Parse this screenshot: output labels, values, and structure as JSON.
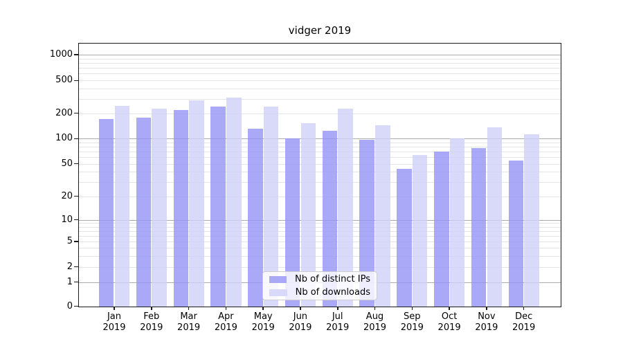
{
  "title": "vidger 2019",
  "chart_data": {
    "type": "bar",
    "title": "vidger 2019",
    "categories": [
      "Jan 2019",
      "Feb 2019",
      "Mar 2019",
      "Apr 2019",
      "May 2019",
      "Jun 2019",
      "Jul 2019",
      "Aug 2019",
      "Sep 2019",
      "Oct 2019",
      "Nov 2019",
      "Dec 2019"
    ],
    "series": [
      {
        "name": "Nb of distinct IPs",
        "color": "#a9a9f6",
        "fill": "rgba(147,147,246,0.8)",
        "values": [
          170,
          178,
          219,
          242,
          131,
          100,
          123,
          97,
          43,
          70,
          77,
          55
        ]
      },
      {
        "name": "Nb of downloads",
        "color": "#d9d9f9",
        "fill": "rgba(208,208,249,0.8)",
        "values": [
          243,
          227,
          285,
          310,
          239,
          151,
          229,
          145,
          63,
          101,
          135,
          112
        ]
      }
    ],
    "xlabel": "",
    "ylabel": "",
    "yscale": "asinh-like (log decades compressing to linear near 0)",
    "yticks": [
      0,
      1,
      2,
      5,
      10,
      20,
      50,
      100,
      200,
      500,
      1000
    ],
    "minor_gridline_values": [
      2,
      3,
      4,
      5,
      6,
      7,
      8,
      9,
      20,
      30,
      40,
      50,
      60,
      70,
      80,
      90,
      200,
      300,
      400,
      500,
      600,
      700,
      800,
      900
    ],
    "major_gridline_values": [
      1,
      10,
      100,
      1000
    ],
    "ylim": [
      0,
      1400
    ],
    "grid": "horizontal major + minor",
    "legend_position": "inside lower-center"
  },
  "colors": {
    "major_grid": "#ababab",
    "minor_grid": "#e4e4e4",
    "frame": "#1a1a1a",
    "background": "#ffffff",
    "text": "#000000",
    "legend_border": "#cccccc"
  }
}
